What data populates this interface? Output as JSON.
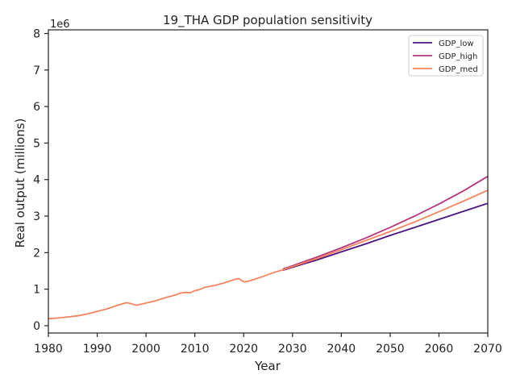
{
  "chart_data": {
    "type": "line",
    "title": "19_THA GDP population sensitivity",
    "xlabel": "Year",
    "ylabel": "Real output (millions)",
    "y_offset_label": "1e6",
    "xlim": [
      1980,
      2070
    ],
    "ylim": [
      -0.2,
      8.1
    ],
    "y_scale": 1000000,
    "x_ticks": [
      1980,
      1990,
      2000,
      2010,
      2020,
      2030,
      2040,
      2050,
      2060,
      2070
    ],
    "y_ticks": [
      0,
      1,
      2,
      3,
      4,
      5,
      6,
      7,
      8
    ],
    "grid": false,
    "legend_position": "top-right",
    "series": [
      {
        "name": "GDP_low",
        "color": "#4a1486",
        "x": [
          2028,
          2030,
          2035,
          2040,
          2045,
          2050,
          2055,
          2060,
          2065,
          2070
        ],
        "y": [
          1.52,
          1.6,
          1.8,
          2.02,
          2.24,
          2.47,
          2.69,
          2.91,
          3.13,
          3.35
        ]
      },
      {
        "name": "GDP_high",
        "color": "#b5367a",
        "x": [
          2028,
          2030,
          2035,
          2040,
          2045,
          2050,
          2055,
          2060,
          2065,
          2070
        ],
        "y": [
          1.55,
          1.64,
          1.88,
          2.13,
          2.4,
          2.69,
          3.0,
          3.33,
          3.69,
          4.09
        ]
      },
      {
        "name": "GDP_med",
        "color": "#f8845f",
        "x": [
          1980,
          1982,
          1984,
          1986,
          1988,
          1990,
          1992,
          1994,
          1996,
          1997,
          1998,
          2000,
          2002,
          2004,
          2006,
          2007,
          2008,
          2009,
          2010,
          2011,
          2012,
          2014,
          2016,
          2018,
          2019,
          2020,
          2021,
          2022,
          2024,
          2026,
          2028,
          2030,
          2035,
          2040,
          2045,
          2050,
          2055,
          2060,
          2065,
          2070
        ],
        "y": [
          0.19,
          0.21,
          0.24,
          0.27,
          0.32,
          0.39,
          0.46,
          0.55,
          0.63,
          0.6,
          0.56,
          0.62,
          0.68,
          0.77,
          0.84,
          0.89,
          0.91,
          0.9,
          0.96,
          0.99,
          1.05,
          1.1,
          1.17,
          1.26,
          1.29,
          1.2,
          1.22,
          1.26,
          1.35,
          1.45,
          1.53,
          1.62,
          1.84,
          2.08,
          2.33,
          2.58,
          2.84,
          3.12,
          3.41,
          3.71
        ]
      }
    ]
  }
}
